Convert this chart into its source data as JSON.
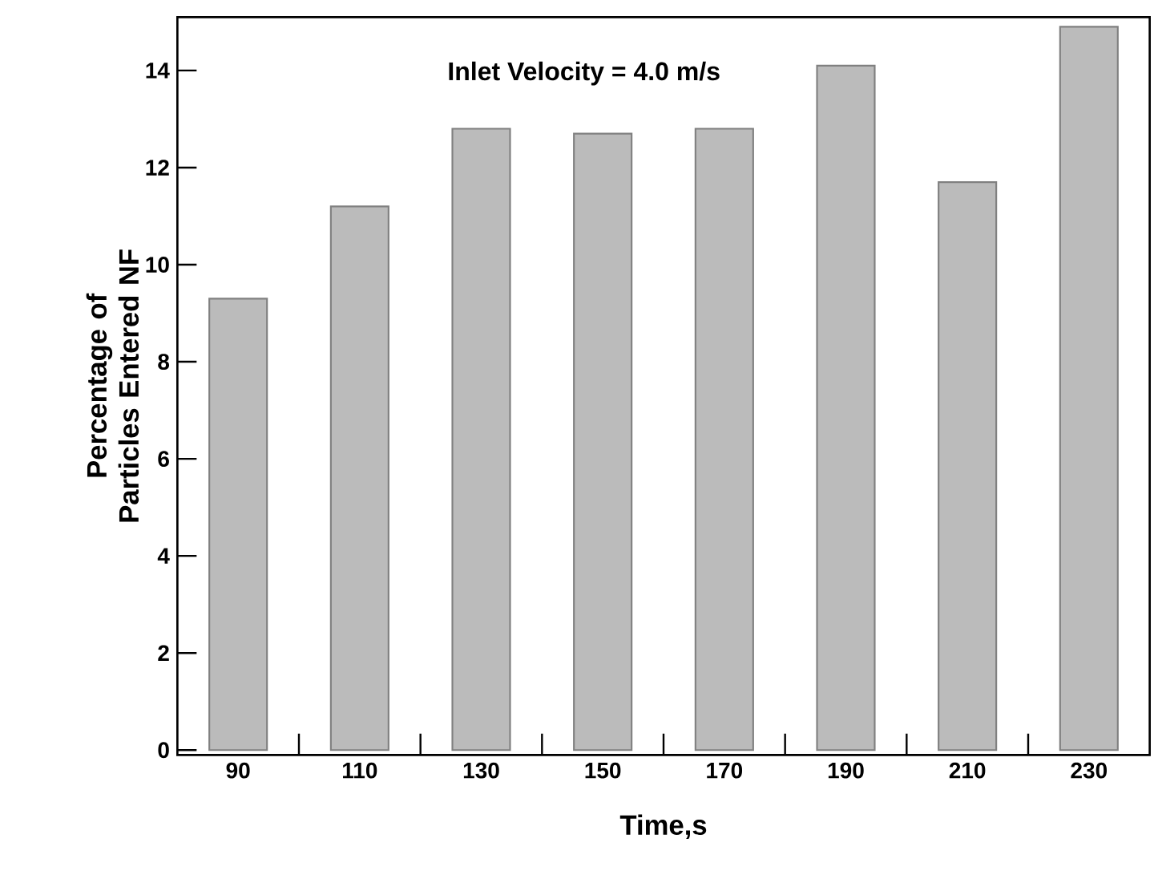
{
  "chart_data": {
    "type": "bar",
    "xlabel": "Time,s",
    "ylabel": "Percentage of Particles Entered NF",
    "annotations": [
      "Inlet Velocity = 4.0 m/s"
    ],
    "categories": [
      "90",
      "110",
      "130",
      "150",
      "170",
      "190",
      "210",
      "230"
    ],
    "values": [
      9.3,
      11.2,
      12.8,
      12.7,
      12.8,
      14.1,
      11.7,
      14.9
    ],
    "color": "#bbbbbb",
    "ylim": [
      -0.1,
      15.1
    ],
    "yticks": [
      0,
      2,
      4,
      6,
      8,
      10,
      12,
      14
    ]
  }
}
